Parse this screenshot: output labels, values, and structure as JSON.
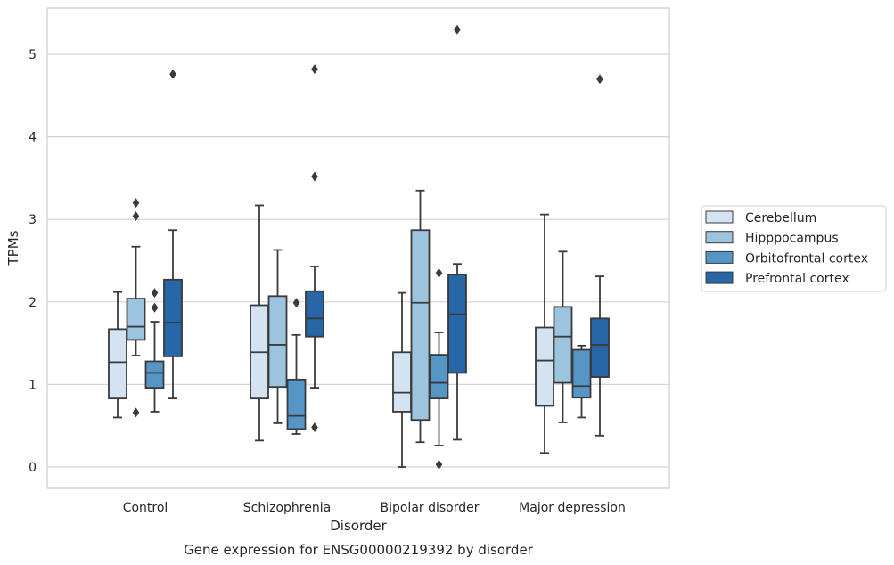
{
  "chart_data": {
    "type": "box",
    "title": "",
    "caption": "Gene expression for ENSG00000219392 by disorder",
    "xlabel": "Disorder",
    "ylabel": "TPMs",
    "ylim": [
      -0.25,
      5.6
    ],
    "yticks": [
      "0",
      "1",
      "2",
      "3",
      "4",
      "5"
    ],
    "grid": "y",
    "legend_position": "right",
    "categories": [
      "Control",
      "Schizophrenia",
      "Bipolar disorder",
      "Major depression"
    ],
    "series": [
      {
        "name": "Cerebellum",
        "color": "#d4e3f2",
        "boxes": [
          {
            "whislo": 0.6,
            "q1": 0.83,
            "med": 1.27,
            "q3": 1.67,
            "whishi": 2.12,
            "fliers": []
          },
          {
            "whislo": 0.32,
            "q1": 0.83,
            "med": 1.39,
            "q3": 1.96,
            "whishi": 3.17,
            "fliers": []
          },
          {
            "whislo": 0.0,
            "q1": 0.67,
            "med": 0.9,
            "q3": 1.39,
            "whishi": 2.11,
            "fliers": []
          },
          {
            "whislo": 0.17,
            "q1": 0.74,
            "med": 1.29,
            "q3": 1.69,
            "whishi": 3.06,
            "fliers": []
          }
        ]
      },
      {
        "name": "Hipppocampus",
        "color": "#9cc4de",
        "boxes": [
          {
            "whislo": 1.35,
            "q1": 1.54,
            "med": 1.7,
            "q3": 2.04,
            "whishi": 2.67,
            "fliers": [
              3.04,
              3.2,
              0.66
            ]
          },
          {
            "whislo": 0.53,
            "q1": 0.97,
            "med": 1.48,
            "q3": 2.07,
            "whishi": 2.63,
            "fliers": []
          },
          {
            "whislo": 0.3,
            "q1": 0.57,
            "med": 1.99,
            "q3": 2.87,
            "whishi": 3.35,
            "fliers": []
          },
          {
            "whislo": 0.54,
            "q1": 1.02,
            "med": 1.58,
            "q3": 1.94,
            "whishi": 2.61,
            "fliers": []
          }
        ]
      },
      {
        "name": "Orbitofrontal cortex",
        "color": "#5696c7",
        "boxes": [
          {
            "whislo": 0.67,
            "q1": 0.96,
            "med": 1.14,
            "q3": 1.28,
            "whishi": 1.76,
            "fliers": [
              2.11,
              1.93
            ]
          },
          {
            "whislo": 0.4,
            "q1": 0.46,
            "med": 0.62,
            "q3": 1.06,
            "whishi": 1.6,
            "fliers": [
              1.99
            ]
          },
          {
            "whislo": 0.26,
            "q1": 0.83,
            "med": 1.02,
            "q3": 1.36,
            "whishi": 1.63,
            "fliers": [
              2.35,
              0.03
            ]
          },
          {
            "whislo": 0.6,
            "q1": 0.84,
            "med": 0.98,
            "q3": 1.42,
            "whishi": 1.47,
            "fliers": []
          }
        ]
      },
      {
        "name": "Prefrontal cortex",
        "color": "#2767a8",
        "boxes": [
          {
            "whislo": 0.83,
            "q1": 1.34,
            "med": 1.75,
            "q3": 2.27,
            "whishi": 2.87,
            "fliers": [
              4.76
            ]
          },
          {
            "whislo": 0.96,
            "q1": 1.58,
            "med": 1.8,
            "q3": 2.13,
            "whishi": 2.43,
            "fliers": [
              4.82,
              3.52,
              0.48
            ]
          },
          {
            "whislo": 0.33,
            "q1": 1.14,
            "med": 1.85,
            "q3": 2.33,
            "whishi": 2.46,
            "fliers": [
              5.3
            ]
          },
          {
            "whislo": 0.38,
            "q1": 1.09,
            "med": 1.48,
            "q3": 1.8,
            "whishi": 2.31,
            "fliers": [
              4.7
            ]
          }
        ]
      }
    ]
  }
}
